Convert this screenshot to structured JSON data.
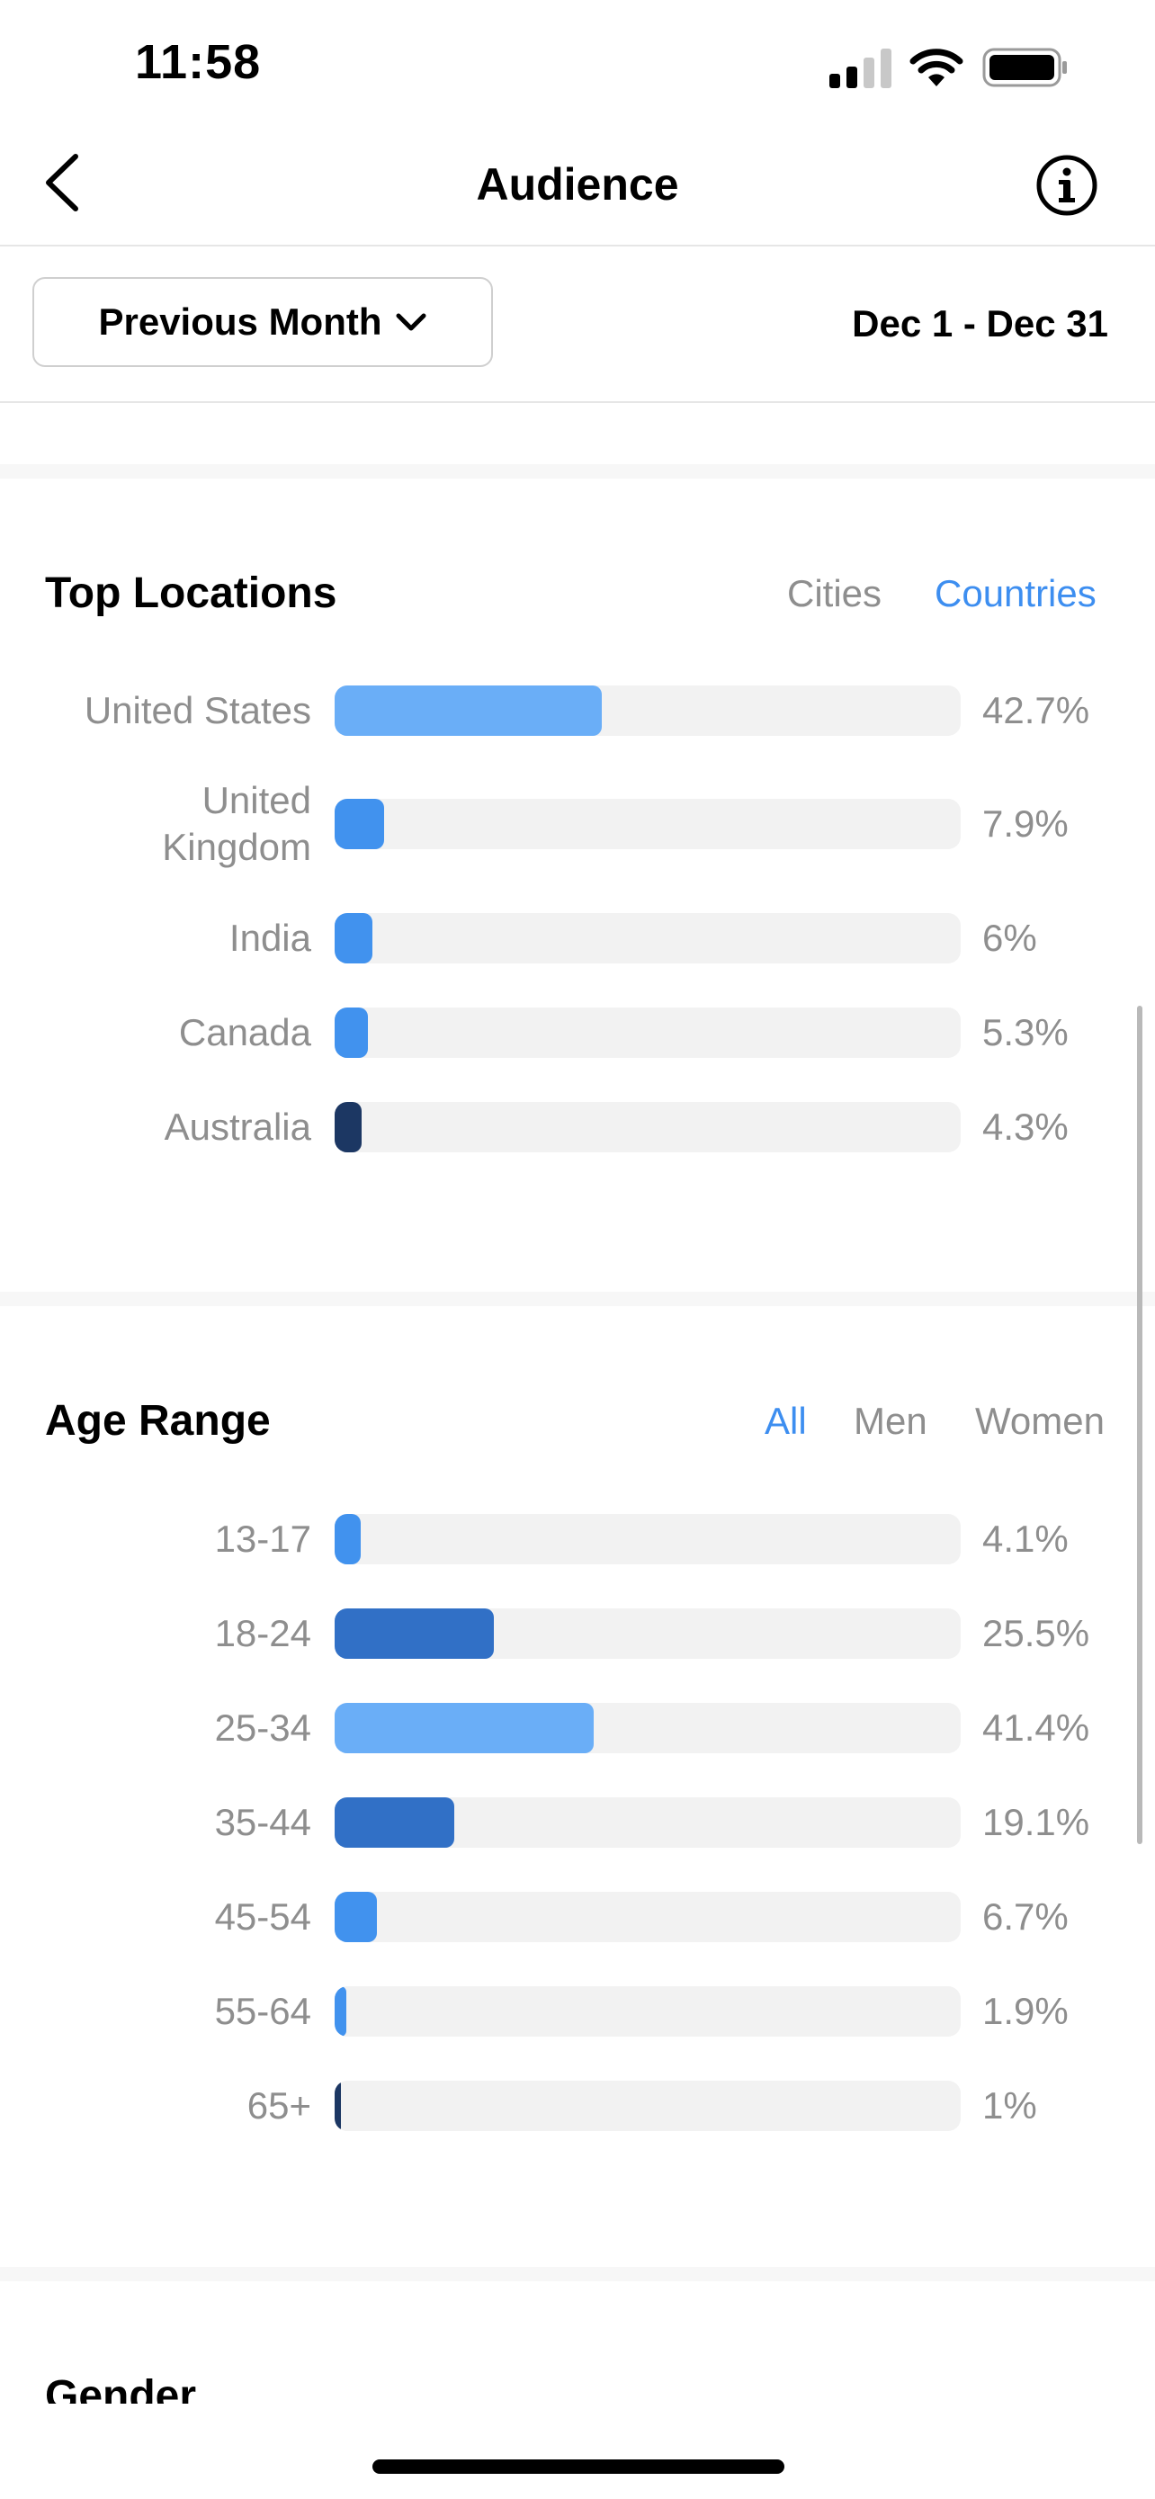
{
  "status_bar": {
    "time": "11:58",
    "icons": [
      "cellular-signal-icon",
      "wifi-icon",
      "battery-icon"
    ]
  },
  "nav": {
    "title": "Audience",
    "back_icon": "chevron-left-icon",
    "info_icon": "info-icon"
  },
  "filters": {
    "period_label": "Previous Month",
    "date_range": "Dec 1 - Dec 31"
  },
  "top_locations": {
    "title": "Top Locations",
    "toggles": [
      {
        "label": "Cities",
        "active": false
      },
      {
        "label": "Countries",
        "active": true
      }
    ],
    "rows": [
      {
        "label": "United States",
        "value": "42.7%",
        "percent": 42.7,
        "color": "#6aaef7"
      },
      {
        "label": "United\nKingdom",
        "value": "7.9%",
        "percent": 7.9,
        "color": "#4192ee"
      },
      {
        "label": "India",
        "value": "6%",
        "percent": 6,
        "color": "#4192ee"
      },
      {
        "label": "Canada",
        "value": "5.3%",
        "percent": 5.3,
        "color": "#4192ee"
      },
      {
        "label": "Australia",
        "value": "4.3%",
        "percent": 4.3,
        "color": "#1c3763"
      }
    ]
  },
  "age_range": {
    "title": "Age Range",
    "toggles": [
      {
        "label": "All",
        "active": true
      },
      {
        "label": "Men",
        "active": false
      },
      {
        "label": "Women",
        "active": false
      }
    ],
    "rows": [
      {
        "label": "13-17",
        "value": "4.1%",
        "percent": 4.1,
        "color": "#4192ee"
      },
      {
        "label": "18-24",
        "value": "25.5%",
        "percent": 25.5,
        "color": "#3170c6"
      },
      {
        "label": "25-34",
        "value": "41.4%",
        "percent": 41.4,
        "color": "#6aaef7"
      },
      {
        "label": "35-44",
        "value": "19.1%",
        "percent": 19.1,
        "color": "#3170c6"
      },
      {
        "label": "45-54",
        "value": "6.7%",
        "percent": 6.7,
        "color": "#4192ee"
      },
      {
        "label": "55-64",
        "value": "1.9%",
        "percent": 1.9,
        "color": "#4192ee"
      },
      {
        "label": "65+",
        "value": "1%",
        "percent": 1,
        "color": "#1c3763"
      }
    ]
  },
  "gender": {
    "title": "Gender"
  },
  "colors": {
    "accent": "#3d8ef0",
    "muted_text": "#8e8e8e",
    "track": "#f2f2f2"
  }
}
